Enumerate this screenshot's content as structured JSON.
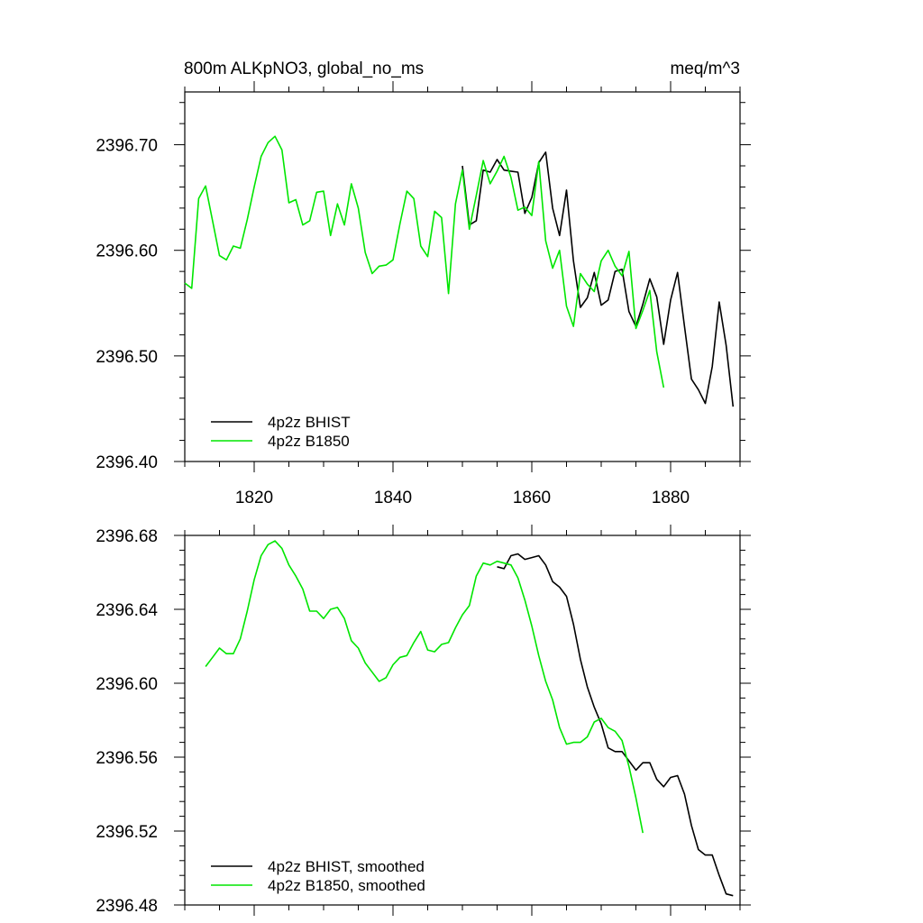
{
  "colors": {
    "bhist": "#000000",
    "b1850": "#00e600"
  },
  "chart_data": [
    {
      "type": "line",
      "title_left": "800m ALKpNO3, global_no_ms",
      "title_right": "meq/m^3",
      "xlim": [
        1810,
        1890
      ],
      "ylim": [
        2396.4,
        2396.75
      ],
      "yticks": [
        "2396.40",
        "2396.50",
        "2396.60",
        "2396.70"
      ],
      "xticks": [
        "1820",
        "1840",
        "1860",
        "1880"
      ],
      "legend_position": "bottom-left",
      "series": [
        {
          "name": "4p2z BHIST",
          "color": "#000000",
          "x": [
            1850,
            1851,
            1852,
            1853,
            1854,
            1855,
            1856,
            1857,
            1858,
            1859,
            1860,
            1861,
            1862,
            1863,
            1864,
            1865,
            1866,
            1867,
            1868,
            1869,
            1870,
            1871,
            1872,
            1873,
            1874,
            1875,
            1876,
            1877,
            1878,
            1879,
            1880,
            1881,
            1882,
            1883,
            1884,
            1885,
            1886,
            1887,
            1888,
            1889
          ],
          "y": [
            2396.68,
            2396.624,
            2396.628,
            2396.676,
            2396.674,
            2396.686,
            2396.676,
            2396.675,
            2396.674,
            2396.635,
            2396.65,
            2396.683,
            2396.693,
            2396.64,
            2396.614,
            2396.657,
            2396.59,
            2396.546,
            2396.555,
            2396.579,
            2396.548,
            2396.553,
            2396.58,
            2396.582,
            2396.542,
            2396.528,
            2396.549,
            2396.573,
            2396.556,
            2396.511,
            2396.553,
            2396.579,
            2396.528,
            2396.478,
            2396.468,
            2396.455,
            2396.49,
            2396.551,
            2396.51,
            2396.452
          ]
        },
        {
          "name": "4p2z B1850",
          "color": "#00e600",
          "x": [
            1810,
            1811,
            1812,
            1813,
            1814,
            1815,
            1816,
            1817,
            1818,
            1819,
            1820,
            1821,
            1822,
            1823,
            1824,
            1825,
            1826,
            1827,
            1828,
            1829,
            1830,
            1831,
            1832,
            1833,
            1834,
            1835,
            1836,
            1837,
            1838,
            1839,
            1840,
            1841,
            1842,
            1843,
            1844,
            1845,
            1846,
            1847,
            1848,
            1849,
            1850,
            1851,
            1852,
            1853,
            1854,
            1855,
            1856,
            1857,
            1858,
            1859,
            1860,
            1861,
            1862,
            1863,
            1864,
            1865,
            1866,
            1867,
            1868,
            1869,
            1870,
            1871,
            1872,
            1873,
            1874,
            1875,
            1876,
            1877,
            1878,
            1879
          ],
          "y": [
            2396.569,
            2396.564,
            2396.649,
            2396.661,
            2396.628,
            2396.595,
            2396.591,
            2396.604,
            2396.602,
            2396.629,
            2396.66,
            2396.689,
            2396.702,
            2396.708,
            2396.695,
            2396.645,
            2396.648,
            2396.624,
            2396.628,
            2396.655,
            2396.656,
            2396.614,
            2396.644,
            2396.624,
            2396.663,
            2396.64,
            2396.598,
            2396.578,
            2396.585,
            2396.586,
            2396.591,
            2396.625,
            2396.656,
            2396.649,
            2396.604,
            2396.594,
            2396.637,
            2396.631,
            2396.559,
            2396.644,
            2396.676,
            2396.62,
            2396.652,
            2396.685,
            2396.663,
            2396.675,
            2396.689,
            2396.669,
            2396.638,
            2396.641,
            2396.633,
            2396.684,
            2396.609,
            2396.583,
            2396.6,
            2396.547,
            2396.528,
            2396.578,
            2396.568,
            2396.561,
            2396.59,
            2396.6,
            2396.585,
            2396.576,
            2396.599,
            2396.526,
            2396.543,
            2396.562,
            2396.504,
            2396.47
          ]
        }
      ]
    },
    {
      "type": "line",
      "xlim": [
        1810,
        1890
      ],
      "ylim": [
        2396.48,
        2396.68
      ],
      "yticks": [
        "2396.48",
        "2396.52",
        "2396.56",
        "2396.60",
        "2396.64",
        "2396.68"
      ],
      "legend_position": "bottom-left",
      "series": [
        {
          "name": "4p2z BHIST, smoothed",
          "color": "#000000",
          "x": [
            1855,
            1856,
            1857,
            1858,
            1859,
            1860,
            1861,
            1862,
            1863,
            1864,
            1865,
            1866,
            1867,
            1868,
            1869,
            1870,
            1871,
            1872,
            1873,
            1874,
            1875,
            1876,
            1877,
            1878,
            1879,
            1880,
            1881,
            1882,
            1883,
            1884,
            1885,
            1886,
            1887,
            1888,
            1889
          ],
          "y": [
            2396.663,
            2396.662,
            2396.669,
            2396.67,
            2396.667,
            2396.668,
            2396.669,
            2396.664,
            2396.655,
            2396.652,
            2396.647,
            2396.632,
            2396.613,
            2396.598,
            2396.587,
            2396.578,
            2396.565,
            2396.563,
            2396.563,
            2396.558,
            2396.553,
            2396.557,
            2396.557,
            2396.548,
            2396.544,
            2396.549,
            2396.55,
            2396.54,
            2396.523,
            2396.51,
            2396.507,
            2396.507,
            2396.496,
            2396.486,
            2396.485
          ]
        },
        {
          "name": "4p2z B1850, smoothed",
          "color": "#00e600",
          "x": [
            1813,
            1814,
            1815,
            1816,
            1817,
            1818,
            1819,
            1820,
            1821,
            1822,
            1823,
            1824,
            1825,
            1826,
            1827,
            1828,
            1829,
            1830,
            1831,
            1832,
            1833,
            1834,
            1835,
            1836,
            1837,
            1838,
            1839,
            1840,
            1841,
            1842,
            1843,
            1844,
            1845,
            1846,
            1847,
            1848,
            1849,
            1850,
            1851,
            1852,
            1853,
            1854,
            1855,
            1856,
            1857,
            1858,
            1859,
            1860,
            1861,
            1862,
            1863,
            1864,
            1865,
            1866,
            1867,
            1868,
            1869,
            1870,
            1871,
            1872,
            1873,
            1874,
            1875,
            1876
          ],
          "y": [
            2396.609,
            2396.614,
            2396.619,
            2396.616,
            2396.616,
            2396.624,
            2396.639,
            2396.656,
            2396.669,
            2396.675,
            2396.677,
            2396.673,
            2396.664,
            2396.658,
            2396.651,
            2396.639,
            2396.639,
            2396.635,
            2396.64,
            2396.641,
            2396.635,
            2396.623,
            2396.619,
            2396.611,
            2396.606,
            2396.601,
            2396.603,
            2396.61,
            2396.614,
            2396.615,
            2396.622,
            2396.628,
            2396.618,
            2396.617,
            2396.621,
            2396.622,
            2396.63,
            2396.637,
            2396.642,
            2396.658,
            2396.665,
            2396.664,
            2396.666,
            2396.665,
            2396.664,
            2396.657,
            2396.645,
            2396.631,
            2396.615,
            2396.601,
            2396.591,
            2396.576,
            2396.567,
            2396.568,
            2396.568,
            2396.571,
            2396.579,
            2396.581,
            2396.576,
            2396.574,
            2396.569,
            2396.555,
            2396.538,
            2396.519
          ]
        }
      ]
    }
  ]
}
